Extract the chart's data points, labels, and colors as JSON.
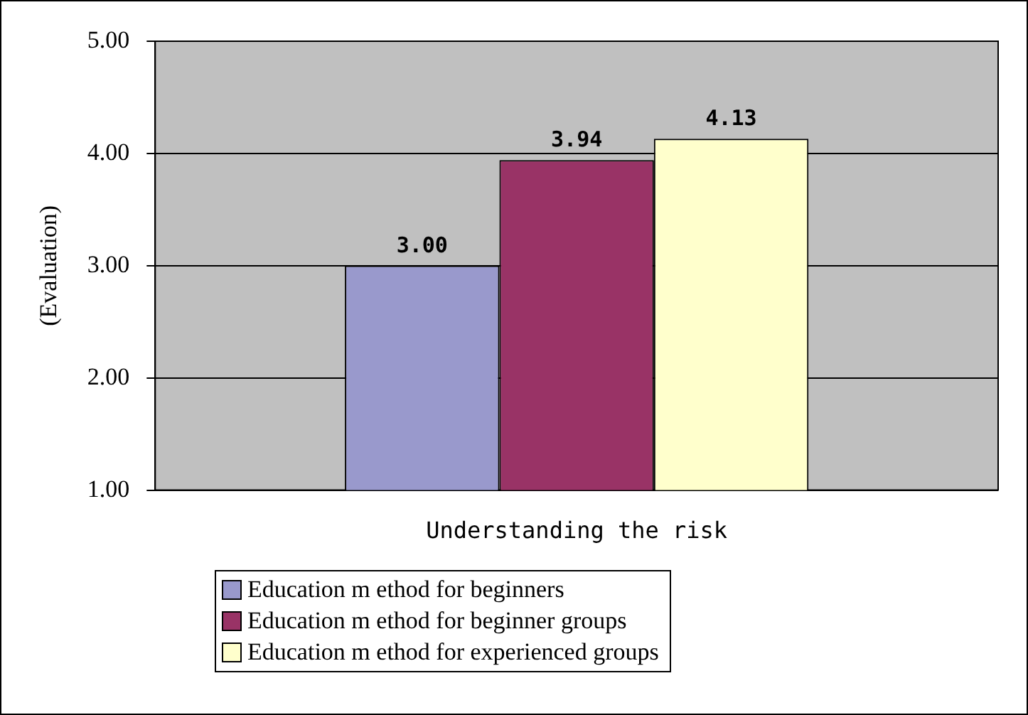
{
  "chart_data": {
    "type": "bar",
    "ylabel": "(Evaluation)",
    "categories": [
      "Understanding the risk"
    ],
    "series": [
      {
        "name": "Education m ethod for beginners",
        "color": "#9999cc",
        "values": [
          3.0
        ],
        "value_labels": [
          "3.00"
        ]
      },
      {
        "name": "Education m ethod for beginner groups",
        "color": "#993366",
        "values": [
          3.94
        ],
        "value_labels": [
          "3.94"
        ]
      },
      {
        "name": "Education m ethod for experienced groups",
        "color": "#ffffcc",
        "values": [
          4.13
        ],
        "value_labels": [
          "4.13"
        ]
      }
    ],
    "ylim": [
      1,
      5
    ],
    "yticks": [
      {
        "value": 1,
        "label": "1.00"
      },
      {
        "value": 2,
        "label": "2.00"
      },
      {
        "value": 3,
        "label": "3.00"
      },
      {
        "value": 4,
        "label": "4.00"
      },
      {
        "value": 5,
        "label": "5.00"
      }
    ],
    "grid": "y",
    "legend": "bottom"
  }
}
